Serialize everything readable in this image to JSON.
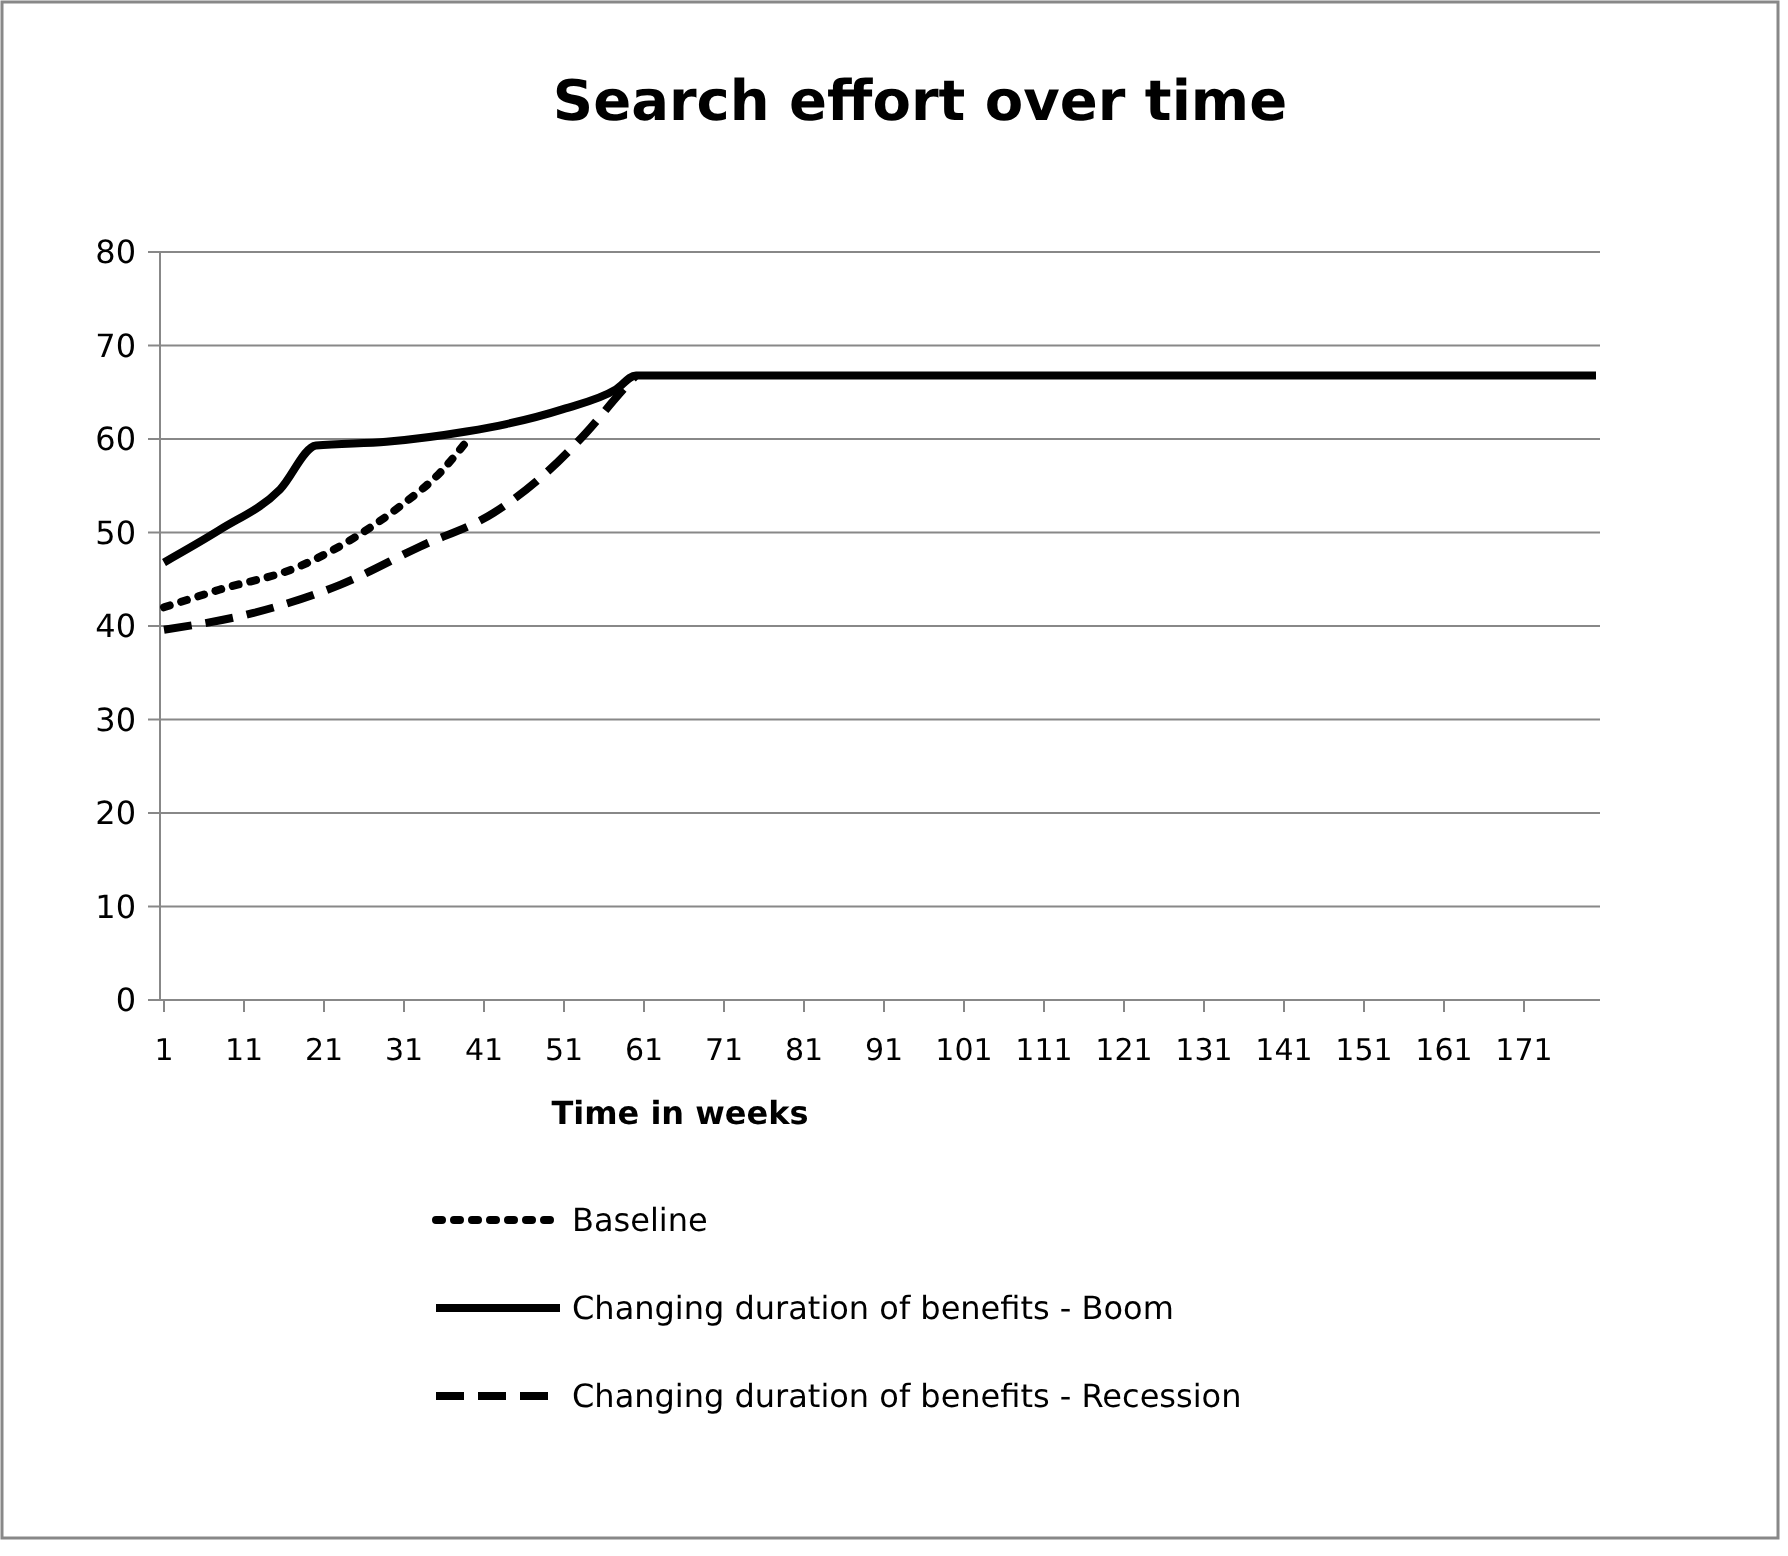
{
  "chart_data": {
    "type": "line",
    "title": "Search effort over time",
    "xlabel": "Time in weeks",
    "xlim": [
      0.5,
      180.5
    ],
    "xticks": [
      1,
      11,
      21,
      31,
      41,
      51,
      61,
      71,
      81,
      91,
      101,
      111,
      121,
      131,
      141,
      151,
      161,
      171
    ],
    "ylim": [
      0,
      80
    ],
    "yticks": [
      0,
      10,
      20,
      30,
      40,
      50,
      60,
      70,
      80
    ],
    "grid": "y",
    "legend": "bottom",
    "marker": "none",
    "series": [
      {
        "name": "Baseline",
        "color": "#000000",
        "line_style": "dotted",
        "x": [
          1,
          8,
          18,
          24.7,
          30.5,
          35.5,
          38.7
        ],
        "values": [
          42,
          43.9,
          46.4,
          49.4,
          52.8,
          56.4,
          59.6
        ]
      },
      {
        "name": "Changing duration of benefits - Boom",
        "color": "#000000",
        "line_style": "solid",
        "x": [
          1,
          8,
          15.5,
          20,
          28.8,
          38.8,
          43.8,
          50.9,
          57.5,
          60,
          180
        ],
        "values": [
          46.8,
          50.3,
          54.6,
          59.3,
          59.7,
          60.8,
          61.6,
          63.2,
          65.3,
          66.8,
          66.8
        ]
      },
      {
        "name": "Changing duration of benefits - Recession",
        "color": "#000000",
        "line_style": "dashed",
        "x": [
          1,
          12.2,
          23,
          33,
          42.2,
          48.8,
          53.8,
          58,
          60
        ],
        "values": [
          39.6,
          41.4,
          44.4,
          48.5,
          52.1,
          56.4,
          60.7,
          64.9,
          66.8
        ]
      }
    ]
  }
}
